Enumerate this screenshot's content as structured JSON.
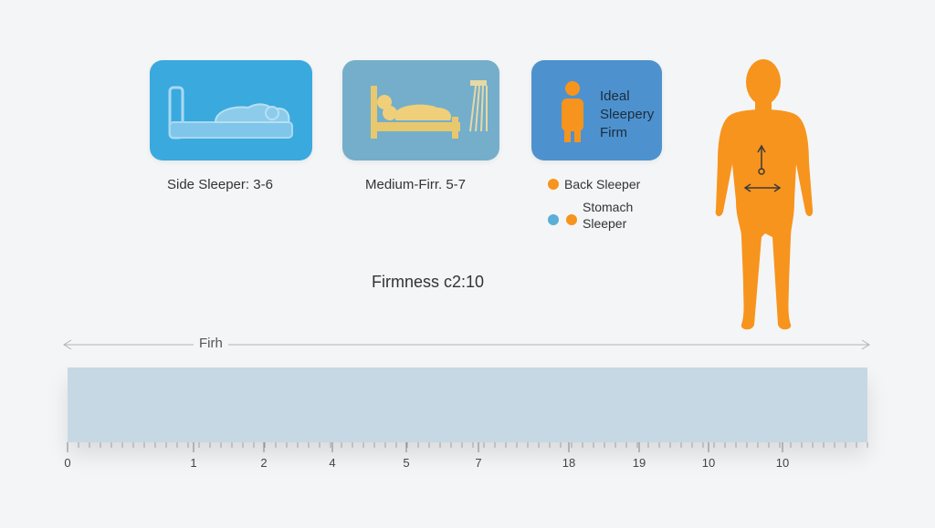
{
  "cards": {
    "side": {
      "icon": "bed-side-sleeper-icon"
    },
    "medium": {
      "icon": "bed-person-icon"
    },
    "ideal": {
      "icon": "person-icon",
      "lines": [
        "Ideal",
        "Sleepery",
        "Firm"
      ]
    }
  },
  "captions": {
    "side": "Side Sleeper: 3-6",
    "medium": "Medium-Firr. 5-7"
  },
  "legend": {
    "back": "Back Sleeper",
    "stomach_line1": "Stomach",
    "stomach_line2": "Sleeper"
  },
  "firmness_label": "Firmness c2:10",
  "range_label": "Firh",
  "scale": {
    "tick_labels": [
      "0",
      "1",
      "2",
      "4",
      "5",
      "7",
      "18",
      "19",
      "10",
      "10"
    ]
  },
  "colors": {
    "orange": "#f7941d",
    "blue": "#3aa9de",
    "bar": "#c6d8e3"
  }
}
